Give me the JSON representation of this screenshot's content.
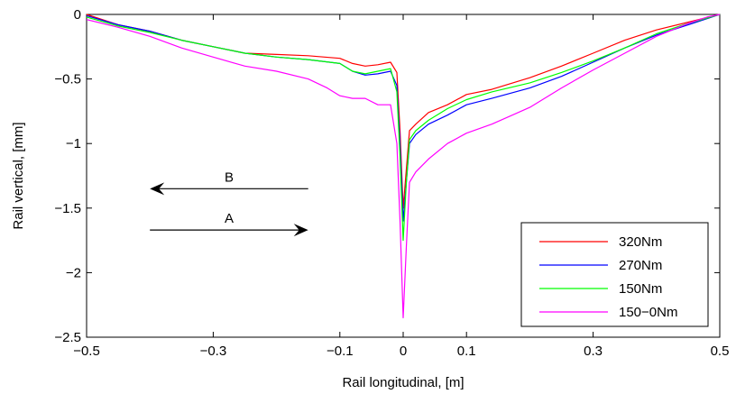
{
  "chart_data": {
    "type": "line",
    "title": "",
    "xlabel": "Rail longitudinal, [m]",
    "ylabel": "Rail vertical, [mm]",
    "xlim": [
      -0.5,
      0.5
    ],
    "ylim": [
      -2.5,
      0
    ],
    "xticks": [
      -0.5,
      -0.3,
      -0.1,
      0,
      0.1,
      0.3,
      0.5
    ],
    "xtick_labels": [
      "−0.5",
      "−0.3",
      "−0.1",
      "0",
      "0.1",
      "0.3",
      "0.5"
    ],
    "yticks": [
      0,
      -0.5,
      -1,
      -1.5,
      -2,
      -2.5
    ],
    "ytick_labels": [
      "0",
      "−0.5",
      "−1",
      "−1.5",
      "−2",
      "−2.5"
    ],
    "grid": false,
    "legend_position": "lower-right",
    "annotations": [
      {
        "text": "B",
        "direction": "left",
        "x_from": -0.15,
        "x_to": -0.4,
        "y": -1.35
      },
      {
        "text": "A",
        "direction": "right",
        "x_from": -0.4,
        "x_to": -0.15,
        "y": -1.67
      }
    ],
    "series": [
      {
        "name": "320Nm",
        "color": "#ff0000",
        "x": [
          -0.5,
          -0.45,
          -0.4,
          -0.35,
          -0.3,
          -0.25,
          -0.2,
          -0.15,
          -0.1,
          -0.08,
          -0.06,
          -0.04,
          -0.02,
          -0.01,
          -0.005,
          0,
          0.005,
          0.01,
          0.02,
          0.04,
          0.07,
          0.1,
          0.14,
          0.2,
          0.25,
          0.3,
          0.35,
          0.4,
          0.45,
          0.5
        ],
        "y": [
          0,
          -0.08,
          -0.13,
          -0.2,
          -0.25,
          -0.3,
          -0.31,
          -0.32,
          -0.34,
          -0.38,
          -0.4,
          -0.39,
          -0.37,
          -0.45,
          -0.9,
          -1.5,
          -1.2,
          -0.9,
          -0.85,
          -0.76,
          -0.7,
          -0.62,
          -0.58,
          -0.49,
          -0.4,
          -0.3,
          -0.2,
          -0.12,
          -0.06,
          0
        ]
      },
      {
        "name": "270Nm",
        "color": "#0000ff",
        "x": [
          -0.5,
          -0.45,
          -0.4,
          -0.35,
          -0.3,
          -0.25,
          -0.2,
          -0.15,
          -0.1,
          -0.08,
          -0.06,
          -0.04,
          -0.02,
          -0.01,
          -0.005,
          0,
          0.005,
          0.01,
          0.02,
          0.04,
          0.07,
          0.1,
          0.14,
          0.2,
          0.25,
          0.3,
          0.35,
          0.4,
          0.45,
          0.5
        ],
        "y": [
          -0.01,
          -0.08,
          -0.13,
          -0.2,
          -0.25,
          -0.3,
          -0.33,
          -0.35,
          -0.38,
          -0.44,
          -0.47,
          -0.46,
          -0.44,
          -0.55,
          -1.0,
          -1.6,
          -1.3,
          -1.0,
          -0.93,
          -0.85,
          -0.78,
          -0.7,
          -0.65,
          -0.57,
          -0.48,
          -0.37,
          -0.26,
          -0.16,
          -0.08,
          0
        ]
      },
      {
        "name": "150Nm",
        "color": "#00ff00",
        "x": [
          -0.5,
          -0.45,
          -0.4,
          -0.35,
          -0.3,
          -0.25,
          -0.2,
          -0.15,
          -0.1,
          -0.08,
          -0.06,
          -0.04,
          -0.02,
          -0.01,
          -0.005,
          0,
          0.005,
          0.01,
          0.02,
          0.04,
          0.07,
          0.1,
          0.14,
          0.2,
          0.25,
          0.3,
          0.35,
          0.4,
          0.45,
          0.5
        ],
        "y": [
          -0.02,
          -0.09,
          -0.14,
          -0.2,
          -0.25,
          -0.3,
          -0.33,
          -0.35,
          -0.38,
          -0.44,
          -0.46,
          -0.44,
          -0.42,
          -0.6,
          -1.1,
          -1.75,
          -1.3,
          -0.97,
          -0.9,
          -0.82,
          -0.73,
          -0.66,
          -0.6,
          -0.53,
          -0.45,
          -0.36,
          -0.26,
          -0.15,
          -0.07,
          0
        ]
      },
      {
        "name": "150−0Nm",
        "color": "#ff00ff",
        "x": [
          -0.5,
          -0.45,
          -0.4,
          -0.35,
          -0.3,
          -0.25,
          -0.2,
          -0.15,
          -0.12,
          -0.1,
          -0.08,
          -0.06,
          -0.04,
          -0.02,
          -0.01,
          -0.005,
          0,
          0.005,
          0.01,
          0.02,
          0.04,
          0.07,
          0.1,
          0.14,
          0.2,
          0.25,
          0.3,
          0.35,
          0.4,
          0.45,
          0.48,
          0.5
        ],
        "y": [
          -0.04,
          -0.1,
          -0.17,
          -0.26,
          -0.33,
          -0.4,
          -0.44,
          -0.5,
          -0.57,
          -0.63,
          -0.65,
          -0.65,
          -0.7,
          -0.7,
          -1.0,
          -1.6,
          -2.35,
          -1.8,
          -1.3,
          -1.22,
          -1.12,
          -1.0,
          -0.92,
          -0.85,
          -0.72,
          -0.57,
          -0.43,
          -0.3,
          -0.17,
          -0.07,
          -0.02,
          0
        ]
      }
    ]
  }
}
